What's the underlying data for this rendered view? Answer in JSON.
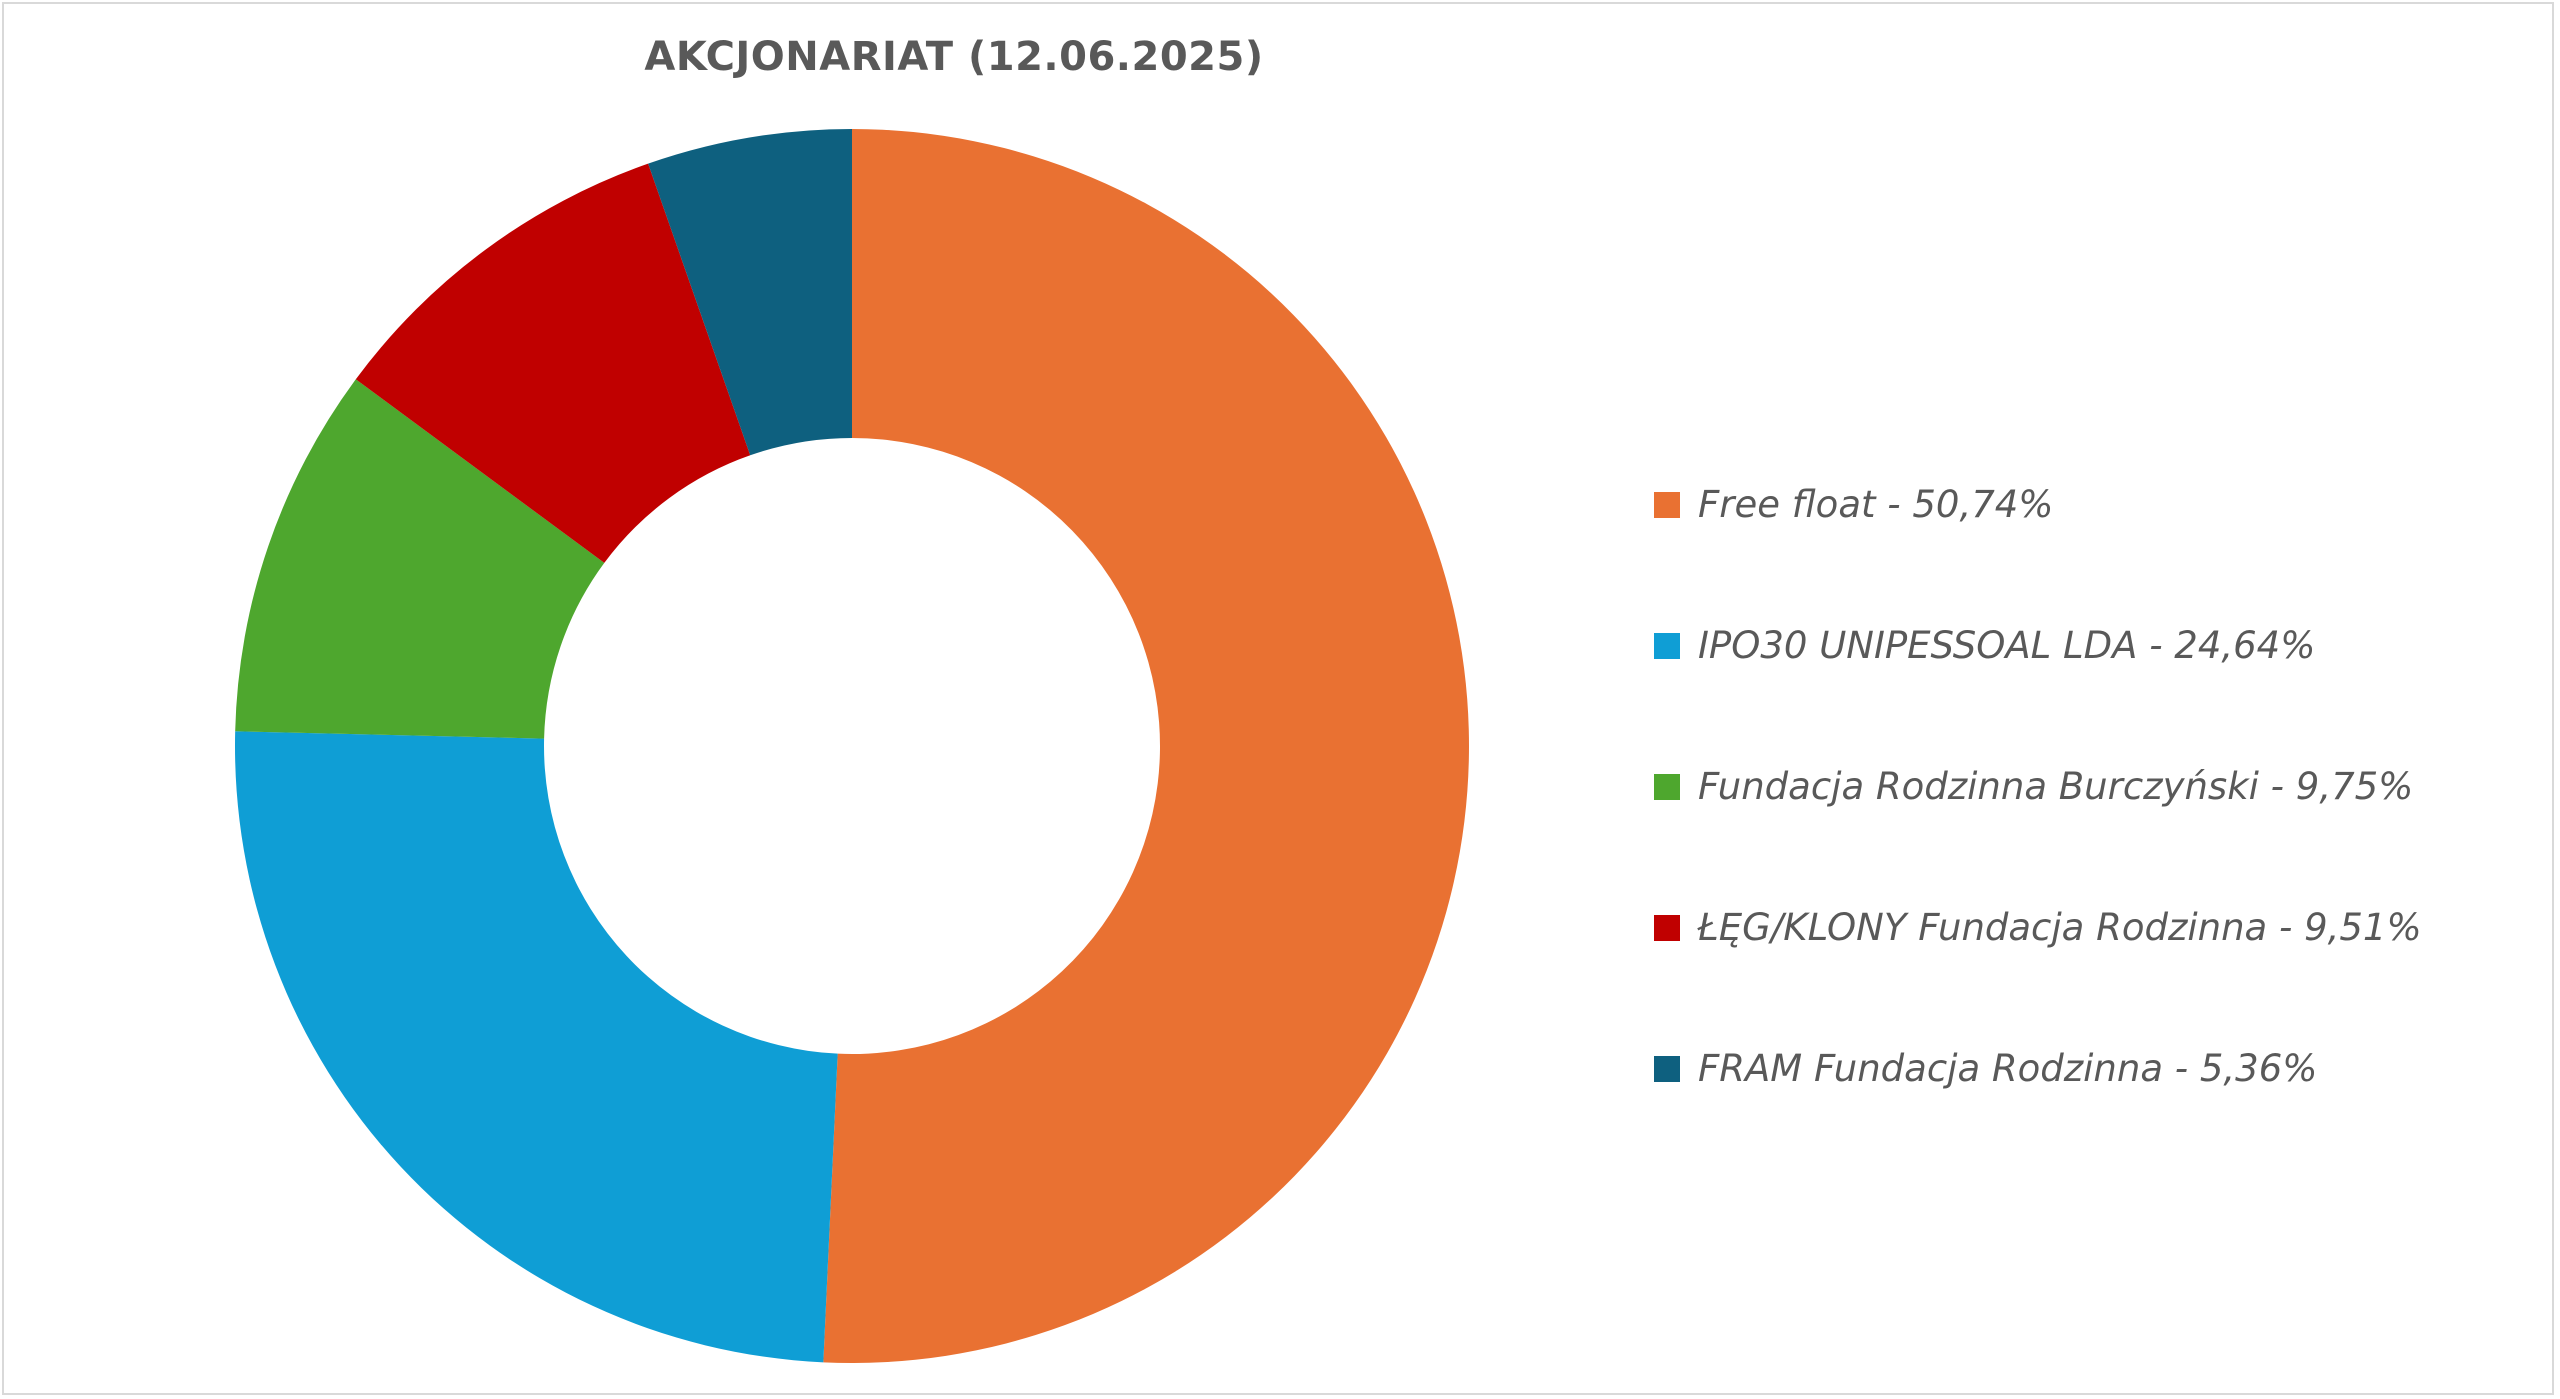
{
  "chart_data": {
    "type": "pie",
    "title": "AKCJONARIAT (12.06.2025)",
    "donut": true,
    "legend_position": "right",
    "slices": [
      {
        "label": "Free float - 50,74%",
        "value": 50.74,
        "color": "#E97132"
      },
      {
        "label": "IPO30 UNIPESSOAL LDA - 24,64%",
        "value": 24.64,
        "color": "#0F9ED5"
      },
      {
        "label": "Fundacja Rodzinna Burczyński - 9,75%",
        "value": 9.75,
        "color": "#4EA72E"
      },
      {
        "label": "ŁĘG/KLONY Fundacja Rodzinna - 9,51%",
        "value": 9.51,
        "color": "#C00000"
      },
      {
        "label": "FRAM Fundacja Rodzinna - 5,36%",
        "value": 5.36,
        "color": "#0E607F"
      }
    ]
  }
}
